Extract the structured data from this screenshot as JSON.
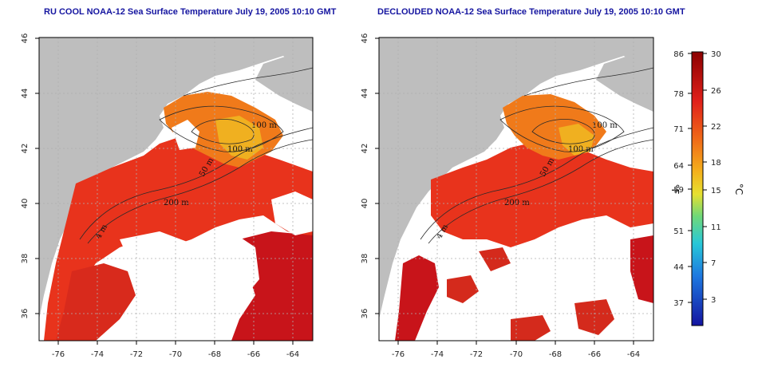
{
  "panels": [
    {
      "title": "RU COOL NOAA-12 Sea Surface Temperature July 19, 2005 10:10 GMT",
      "contour_labels": [
        "100 m",
        "100 m",
        "50 m",
        "200 m",
        "4 m"
      ]
    },
    {
      "title": "DECLOUDED NOAA-12 Sea Surface Temperature July 19, 2005 10:10 GMT",
      "contour_labels": [
        "100 m",
        "100 m",
        "50 m",
        "200 m",
        "4 m"
      ]
    }
  ],
  "x_ticks": [
    "-76",
    "-74",
    "-72",
    "-70",
    "-68",
    "-66",
    "-64"
  ],
  "y_ticks": [
    "46",
    "44",
    "42",
    "40",
    "38",
    "36"
  ],
  "colorbar": {
    "fahrenheit_unit": "°F",
    "celsius_unit": "°C",
    "fahrenheit_ticks": [
      "86",
      "78",
      "71",
      "64",
      "59",
      "51",
      "44",
      "37"
    ],
    "celsius_ticks": [
      "30",
      "26",
      "22",
      "18",
      "15",
      "11",
      "7",
      "3"
    ]
  },
  "colors": {
    "land": "#bebebe",
    "cloud": "#ffffff",
    "sst_warm": "#e8331c",
    "sst_hot": "#c8141a",
    "sst_mid": "#f07a1a",
    "sst_cool": "#f0b020",
    "title": "#1515a0",
    "grid": "#b0b0b0"
  }
}
